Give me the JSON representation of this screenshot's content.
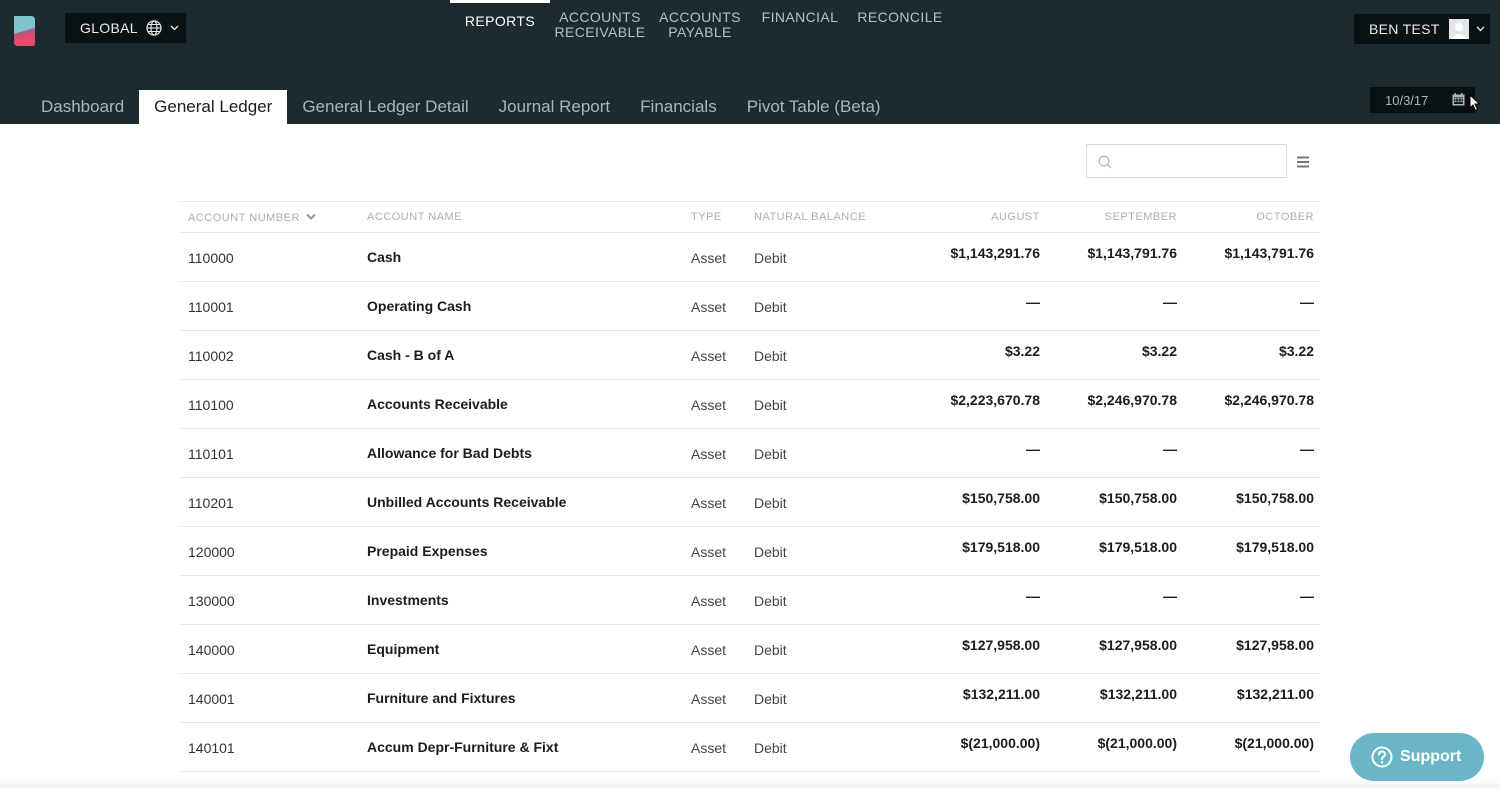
{
  "header": {
    "global_label": "GLOBAL",
    "nav": [
      {
        "line1": "REPORTS",
        "line2": ""
      },
      {
        "line1": "ACCOUNTS",
        "line2": "RECEIVABLE"
      },
      {
        "line1": "ACCOUNTS",
        "line2": "PAYABLE"
      },
      {
        "line1": "FINANCIAL",
        "line2": ""
      },
      {
        "line1": "RECONCILE",
        "line2": ""
      }
    ],
    "user_name": "BEN TEST"
  },
  "subtabs": [
    "Dashboard",
    "General Ledger",
    "General Ledger Detail",
    "Journal Report",
    "Financials",
    "Pivot Table (Beta)"
  ],
  "date": "10/3/17",
  "search": {
    "value": "",
    "placeholder": ""
  },
  "table": {
    "headers": {
      "account_number": "ACCOUNT NUMBER",
      "account_name": "ACCOUNT NAME",
      "type": "TYPE",
      "natural_balance": "NATURAL BALANCE",
      "august": "AUGUST",
      "september": "SEPTEMBER",
      "october": "OCTOBER"
    },
    "rows": [
      {
        "num": "110000",
        "name": "Cash",
        "type": "Asset",
        "bal": "Debit",
        "aug": "$1,143,291.76",
        "sep": "$1,143,791.76",
        "oct": "$1,143,791.76"
      },
      {
        "num": "110001",
        "name": "Operating Cash",
        "type": "Asset",
        "bal": "Debit",
        "aug": "—",
        "sep": "—",
        "oct": "—"
      },
      {
        "num": "110002",
        "name": "Cash - B of A",
        "type": "Asset",
        "bal": "Debit",
        "aug": "$3.22",
        "sep": "$3.22",
        "oct": "$3.22"
      },
      {
        "num": "110100",
        "name": "Accounts Receivable",
        "type": "Asset",
        "bal": "Debit",
        "aug": "$2,223,670.78",
        "sep": "$2,246,970.78",
        "oct": "$2,246,970.78"
      },
      {
        "num": "110101",
        "name": "Allowance for Bad Debts",
        "type": "Asset",
        "bal": "Debit",
        "aug": "—",
        "sep": "—",
        "oct": "—"
      },
      {
        "num": "110201",
        "name": "Unbilled Accounts Receivable",
        "type": "Asset",
        "bal": "Debit",
        "aug": "$150,758.00",
        "sep": "$150,758.00",
        "oct": "$150,758.00"
      },
      {
        "num": "120000",
        "name": "Prepaid Expenses",
        "type": "Asset",
        "bal": "Debit",
        "aug": "$179,518.00",
        "sep": "$179,518.00",
        "oct": "$179,518.00"
      },
      {
        "num": "130000",
        "name": "Investments",
        "type": "Asset",
        "bal": "Debit",
        "aug": "—",
        "sep": "—",
        "oct": "—"
      },
      {
        "num": "140000",
        "name": "Equipment",
        "type": "Asset",
        "bal": "Debit",
        "aug": "$127,958.00",
        "sep": "$127,958.00",
        "oct": "$127,958.00"
      },
      {
        "num": "140001",
        "name": "Furniture and Fixtures",
        "type": "Asset",
        "bal": "Debit",
        "aug": "$132,211.00",
        "sep": "$132,211.00",
        "oct": "$132,211.00"
      },
      {
        "num": "140101",
        "name": "Accum Depr-Furniture & Fixt",
        "type": "Asset",
        "bal": "Debit",
        "aug": "$(21,000.00)",
        "sep": "$(21,000.00)",
        "oct": "$(21,000.00)"
      }
    ]
  },
  "support_label": "Support",
  "colors": {
    "header_bg": "#1b2b30",
    "button_bg": "#0a1114",
    "support_bg": "#6ab6c8",
    "logo_teal": "#7fc3cf",
    "logo_pink": "#e14c6e"
  }
}
